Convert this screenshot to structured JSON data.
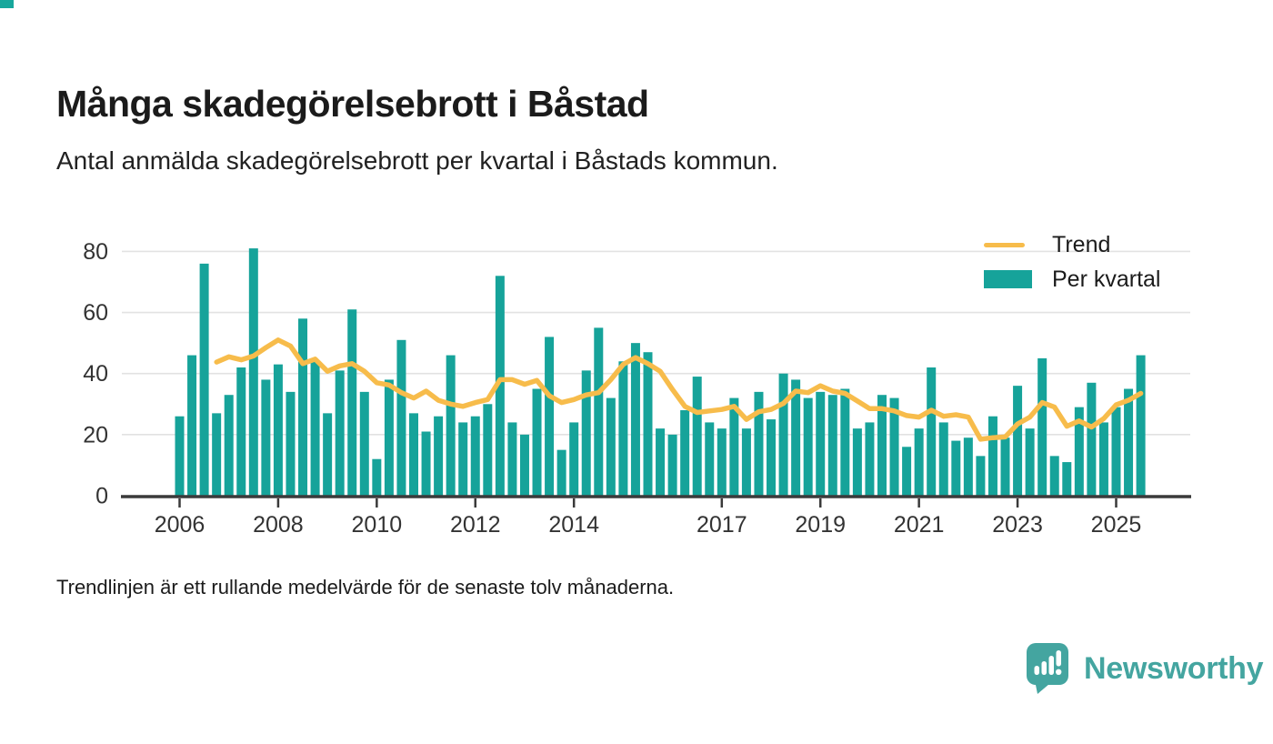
{
  "header": {
    "title": "Många skadegörelsebrott i Båstad",
    "subtitle": "Antal anmälda skadegörelsebrott per kvartal i Båstads kommun."
  },
  "legend": {
    "trend_label": "Trend",
    "bars_label": "Per kvartal"
  },
  "footer": {
    "note": "Trendlinjen är ett rullande medelvärde för de senaste tolv månaderna.",
    "brand": "Newsworthy"
  },
  "colors": {
    "bar": "#16a39a",
    "trend": "#f7bc4b",
    "grid": "#e2e2e2",
    "axis": "#3a3a3a",
    "tick_text": "#333333",
    "brand": "#44a5a0"
  },
  "chart_data": {
    "type": "bar",
    "title": "Antal anmälda skadegörelsebrott per kvartal i Båstads kommun",
    "xlabel": "",
    "ylabel": "",
    "ylim": [
      0,
      85
    ],
    "y_ticks": [
      0,
      20,
      40,
      60,
      80
    ],
    "grid": true,
    "legend_position": "top-right",
    "x_year_tick_labels": [
      "2006",
      "2008",
      "2010",
      "2012",
      "2014",
      "2017",
      "2019",
      "2021",
      "2023",
      "2025"
    ],
    "categories": [
      "2006Q1",
      "2006Q2",
      "2006Q3",
      "2006Q4",
      "2007Q1",
      "2007Q2",
      "2007Q3",
      "2007Q4",
      "2008Q1",
      "2008Q2",
      "2008Q3",
      "2008Q4",
      "2009Q1",
      "2009Q2",
      "2009Q3",
      "2009Q4",
      "2010Q1",
      "2010Q2",
      "2010Q3",
      "2010Q4",
      "2011Q1",
      "2011Q2",
      "2011Q3",
      "2011Q4",
      "2012Q1",
      "2012Q2",
      "2012Q3",
      "2012Q4",
      "2013Q1",
      "2013Q2",
      "2013Q3",
      "2013Q4",
      "2014Q1",
      "2014Q2",
      "2014Q3",
      "2014Q4",
      "2015Q1",
      "2015Q2",
      "2015Q3",
      "2015Q4",
      "2016Q1",
      "2016Q2",
      "2016Q3",
      "2016Q4",
      "2017Q1",
      "2017Q2",
      "2017Q3",
      "2017Q4",
      "2018Q1",
      "2018Q2",
      "2018Q3",
      "2018Q4",
      "2019Q1",
      "2019Q2",
      "2019Q3",
      "2019Q4",
      "2020Q1",
      "2020Q2",
      "2020Q3",
      "2020Q4",
      "2021Q1",
      "2021Q2",
      "2021Q3",
      "2021Q4",
      "2022Q1",
      "2022Q2",
      "2022Q3",
      "2022Q4",
      "2023Q1",
      "2023Q2",
      "2023Q3",
      "2023Q4",
      "2024Q1",
      "2024Q2",
      "2024Q3",
      "2024Q4",
      "2025Q1",
      "2025Q2",
      "2025Q3"
    ],
    "series": [
      {
        "name": "Per kvartal",
        "type": "bar",
        "values": [
          26,
          46,
          76,
          27,
          33,
          42,
          81,
          38,
          43,
          34,
          58,
          44,
          27,
          41,
          61,
          34,
          12,
          38,
          51,
          27,
          21,
          26,
          46,
          24,
          26,
          30,
          72,
          24,
          20,
          35,
          52,
          15,
          24,
          41,
          55,
          32,
          44,
          50,
          47,
          22,
          20,
          28,
          39,
          24,
          22,
          32,
          22,
          34,
          25,
          40,
          38,
          32,
          34,
          33,
          35,
          22,
          24,
          33,
          32,
          16,
          22,
          42,
          24,
          18,
          19,
          13,
          26,
          19,
          36,
          22,
          45,
          13,
          11,
          29,
          37,
          24,
          29,
          35,
          46
        ]
      },
      {
        "name": "Trend",
        "type": "line",
        "note": "rullande medelvärde över fyra kvartal (tolv månader)",
        "values": [
          null,
          null,
          null,
          43.75,
          45.5,
          44.5,
          45.75,
          48.5,
          51,
          49,
          43.25,
          44.75,
          40.75,
          42.5,
          43.25,
          40.75,
          37,
          36.25,
          33.75,
          32,
          34.25,
          31.25,
          30,
          29.25,
          30.5,
          31.5,
          38,
          38,
          36.5,
          37.75,
          32.75,
          30.5,
          31.5,
          33,
          33.75,
          38,
          43,
          45.25,
          43.25,
          40.75,
          34.75,
          29.25,
          27.25,
          27.75,
          28.25,
          29.25,
          25,
          27.5,
          28.25,
          30.25,
          34.25,
          33.75,
          36,
          34.25,
          33.5,
          31,
          28.5,
          28.5,
          27.75,
          26.25,
          25.75,
          28,
          26,
          26.5,
          25.75,
          18.5,
          19,
          19.25,
          23.5,
          25.75,
          30.5,
          29,
          22.75,
          24.5,
          22.5,
          25.25,
          29.75,
          31.25,
          33.5
        ]
      }
    ]
  }
}
